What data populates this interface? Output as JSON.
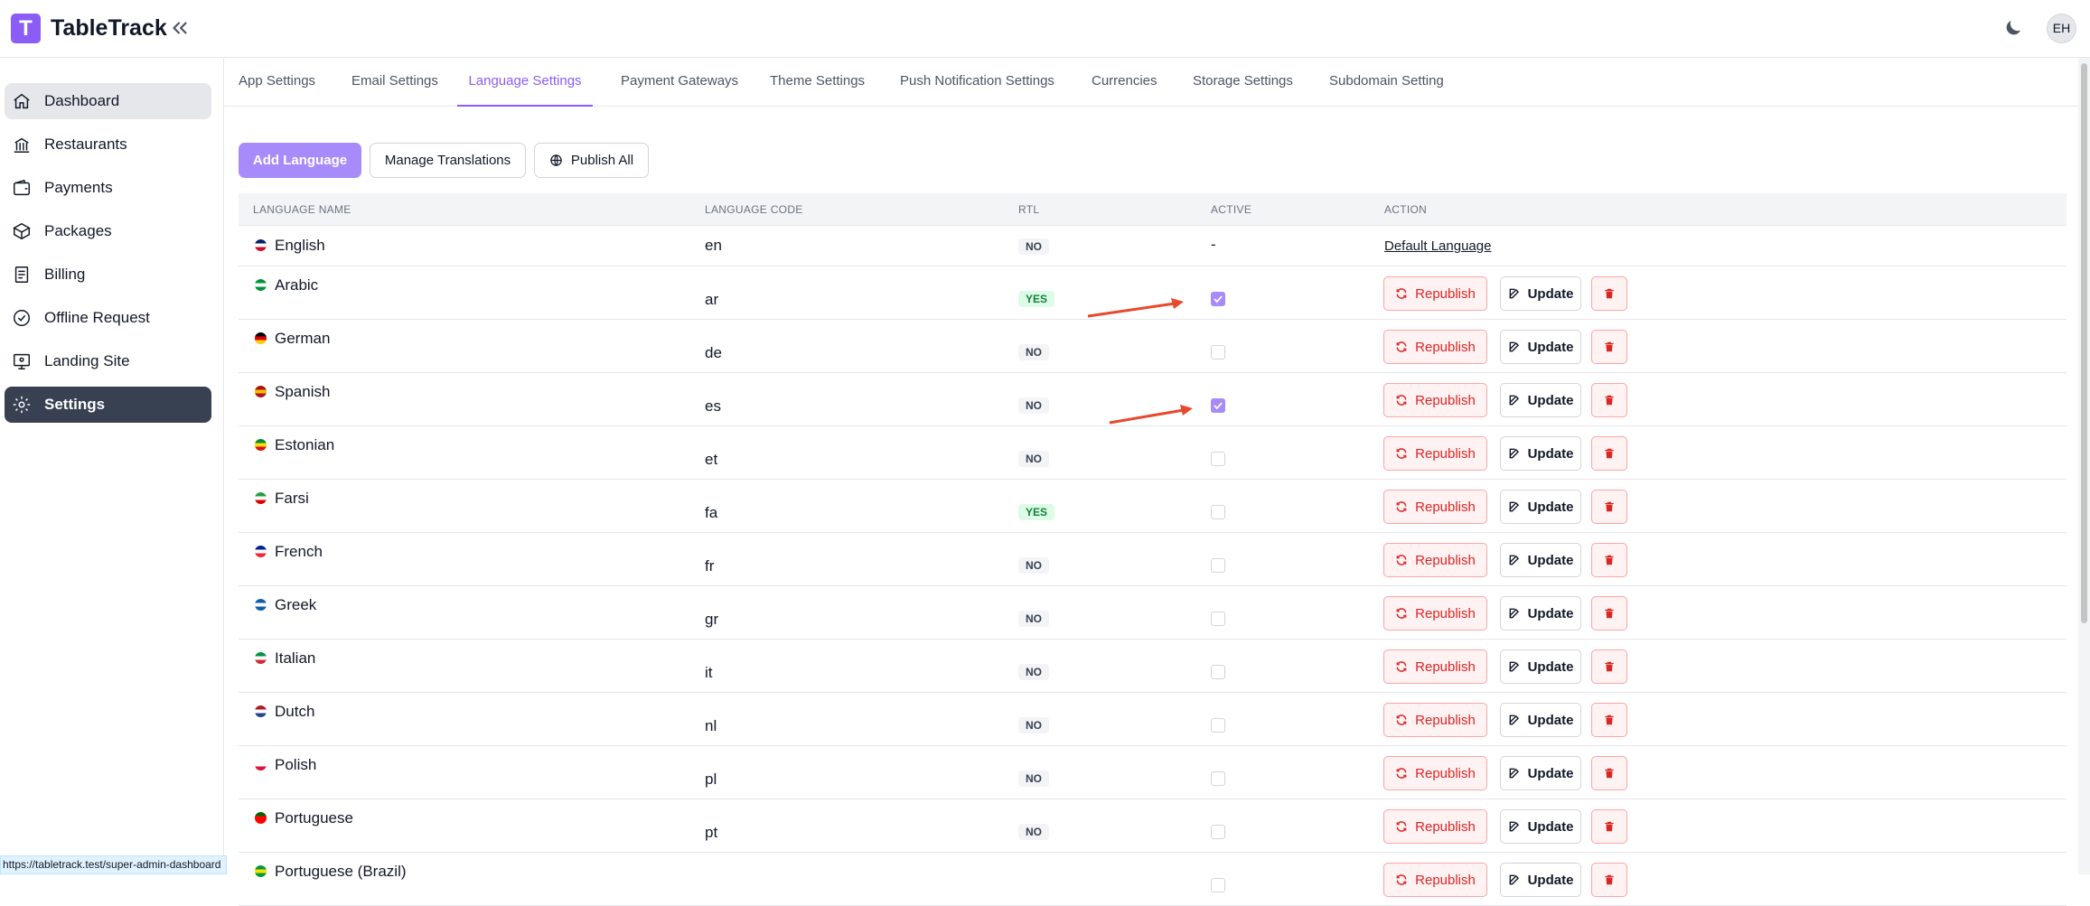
{
  "app": {
    "logo_letter": "T",
    "title": "TableTrack",
    "avatar_initials": "EH"
  },
  "sidebar": {
    "items": [
      {
        "label": "Dashboard",
        "icon": "home-icon",
        "state": "hover"
      },
      {
        "label": "Restaurants",
        "icon": "building-icon",
        "state": ""
      },
      {
        "label": "Payments",
        "icon": "wallet-icon",
        "state": ""
      },
      {
        "label": "Packages",
        "icon": "box-icon",
        "state": ""
      },
      {
        "label": "Billing",
        "icon": "receipt-icon",
        "state": ""
      },
      {
        "label": "Offline Request",
        "icon": "badge-check-icon",
        "state": ""
      },
      {
        "label": "Landing Site",
        "icon": "monitor-icon",
        "state": ""
      },
      {
        "label": "Settings",
        "icon": "gear-icon",
        "state": "active"
      }
    ]
  },
  "tabs": [
    {
      "label": "App Settings",
      "active": false
    },
    {
      "label": "Email Settings",
      "active": false
    },
    {
      "label": "Language Settings",
      "active": true
    },
    {
      "label": "Payment Gateways",
      "active": false
    },
    {
      "label": "Theme Settings",
      "active": false
    },
    {
      "label": "Push Notification Settings",
      "active": false
    },
    {
      "label": "Currencies",
      "active": false
    },
    {
      "label": "Storage Settings",
      "active": false
    },
    {
      "label": "Subdomain Setting",
      "active": false
    }
  ],
  "toolbar": {
    "add_label": "Add Language",
    "manage_label": "Manage Translations",
    "publish_label": "Publish All"
  },
  "table": {
    "headers": [
      "LANGUAGE NAME",
      "LANGUAGE CODE",
      "RTL",
      "ACTIVE",
      "ACTION"
    ],
    "default_label": "Default Language",
    "republish_label": "Republish",
    "update_label": "Update",
    "active_dash": "-",
    "rows": [
      {
        "name": "English",
        "code": "en",
        "rtl": "NO",
        "active": null,
        "flag": [
          "#012169",
          "#ffffff",
          "#c8102e"
        ]
      },
      {
        "name": "Arabic",
        "code": "ar",
        "rtl": "YES",
        "active": true,
        "flag": [
          "#009639",
          "#ffffff",
          "#009639"
        ]
      },
      {
        "name": "German",
        "code": "de",
        "rtl": "NO",
        "active": false,
        "flag": [
          "#000000",
          "#dd0000",
          "#ffce00"
        ]
      },
      {
        "name": "Spanish",
        "code": "es",
        "rtl": "NO",
        "active": true,
        "flag": [
          "#aa151b",
          "#f1bf00",
          "#aa151b"
        ]
      },
      {
        "name": "Estonian",
        "code": "et",
        "rtl": "NO",
        "active": false,
        "flag": [
          "#078930",
          "#fcdd09",
          "#da121a"
        ]
      },
      {
        "name": "Farsi",
        "code": "fa",
        "rtl": "YES",
        "active": false,
        "flag": [
          "#239f40",
          "#ffffff",
          "#da0000"
        ]
      },
      {
        "name": "French",
        "code": "fr",
        "rtl": "NO",
        "active": false,
        "flag": [
          "#002395",
          "#ffffff",
          "#ed2939"
        ]
      },
      {
        "name": "Greek",
        "code": "gr",
        "rtl": "NO",
        "active": false,
        "flag": [
          "#0d5eaf",
          "#ffffff",
          "#0d5eaf"
        ]
      },
      {
        "name": "Italian",
        "code": "it",
        "rtl": "NO",
        "active": false,
        "flag": [
          "#009246",
          "#ffffff",
          "#ce2b37"
        ]
      },
      {
        "name": "Dutch",
        "code": "nl",
        "rtl": "NO",
        "active": false,
        "flag": [
          "#ae1c28",
          "#ffffff",
          "#21468b"
        ]
      },
      {
        "name": "Polish",
        "code": "pl",
        "rtl": "NO",
        "active": false,
        "flag": [
          "#ffffff",
          "#ffffff",
          "#dc143c"
        ]
      },
      {
        "name": "Portuguese",
        "code": "pt",
        "rtl": "NO",
        "active": false,
        "flag": [
          "#006600",
          "#ff0000",
          "#ff0000"
        ]
      },
      {
        "name": "Portuguese (Brazil)",
        "code": "",
        "rtl": "",
        "active": false,
        "flag": [
          "#009c3b",
          "#ffdf00",
          "#009c3b"
        ]
      }
    ]
  },
  "colors": {
    "accent": "#8b5cf6",
    "annotation_arrow": "#e8482b",
    "danger": "#dc2626"
  },
  "status_url": "https://tabletrack.test/super-admin-dashboard"
}
